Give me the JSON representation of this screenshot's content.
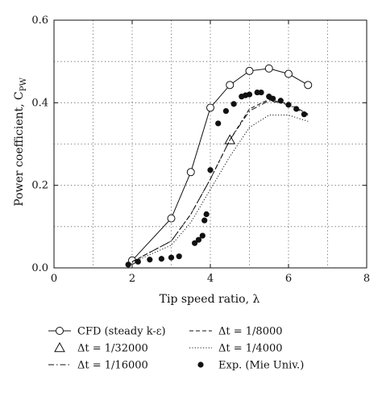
{
  "chart_data": {
    "type": "line",
    "title": "",
    "xlabel": "Tip speed ratio, λ",
    "ylabel": "Power coefficient, C",
    "ylabel_sub": "PW",
    "xlim": [
      0,
      8
    ],
    "ylim": [
      0,
      0.6
    ],
    "xticks": [
      0,
      2,
      4,
      6,
      8
    ],
    "yticks": [
      0.0,
      0.2,
      0.4,
      0.6
    ],
    "xtick_labels": [
      "0",
      "2",
      "4",
      "6",
      "8"
    ],
    "ytick_labels": [
      "0.0",
      "0.2",
      "0.4",
      "0.6"
    ],
    "grid": true,
    "legend_position": "bottom",
    "series": [
      {
        "name": "CFD (steady k-ε)",
        "style": "solid-open-circle",
        "x": [
          2.0,
          3.0,
          3.5,
          4.0,
          4.5,
          5.0,
          5.5,
          6.0,
          6.5
        ],
        "y": [
          0.018,
          0.12,
          0.232,
          0.388,
          0.443,
          0.477,
          0.483,
          0.47,
          0.443
        ]
      },
      {
        "name": "Δt = 1/32000",
        "style": "open-triangle",
        "x": [
          4.5
        ],
        "y": [
          0.31
        ]
      },
      {
        "name": "Δt = 1/16000",
        "style": "dash-dot",
        "x": [
          2.0,
          3.0,
          3.5,
          4.0,
          4.5,
          5.0,
          5.5,
          6.0,
          6.5
        ],
        "y": [
          0.015,
          0.065,
          0.13,
          0.215,
          0.31,
          0.38,
          0.405,
          0.395,
          0.37
        ]
      },
      {
        "name": "Δt = 1/8000",
        "style": "dashed",
        "x": [
          2.0,
          3.0,
          3.5,
          4.0,
          4.5,
          5.0,
          5.5,
          6.0,
          6.5
        ],
        "y": [
          0.015,
          0.065,
          0.13,
          0.215,
          0.31,
          0.385,
          0.408,
          0.397,
          0.373
        ]
      },
      {
        "name": "Δt = 1/4000",
        "style": "dotted",
        "x": [
          2.0,
          3.0,
          3.5,
          4.0,
          4.5,
          5.0,
          5.5,
          6.0,
          6.5
        ],
        "y": [
          0.013,
          0.055,
          0.11,
          0.19,
          0.27,
          0.34,
          0.37,
          0.37,
          0.355
        ]
      },
      {
        "name": "Exp. (Mie Univ.)",
        "style": "filled-circle",
        "x": [
          1.9,
          2.15,
          2.45,
          2.75,
          3.0,
          3.2,
          3.6,
          3.7,
          3.8,
          3.85,
          3.9,
          4.0,
          4.2,
          4.4,
          4.6,
          4.8,
          4.9,
          5.0,
          5.2,
          5.3,
          5.5,
          5.6,
          5.8,
          6.0,
          6.2,
          6.4
        ],
        "y": [
          0.008,
          0.015,
          0.02,
          0.022,
          0.025,
          0.028,
          0.06,
          0.068,
          0.078,
          0.115,
          0.13,
          0.237,
          0.35,
          0.38,
          0.397,
          0.415,
          0.418,
          0.42,
          0.425,
          0.425,
          0.415,
          0.41,
          0.405,
          0.395,
          0.385,
          0.372
        ]
      }
    ]
  }
}
